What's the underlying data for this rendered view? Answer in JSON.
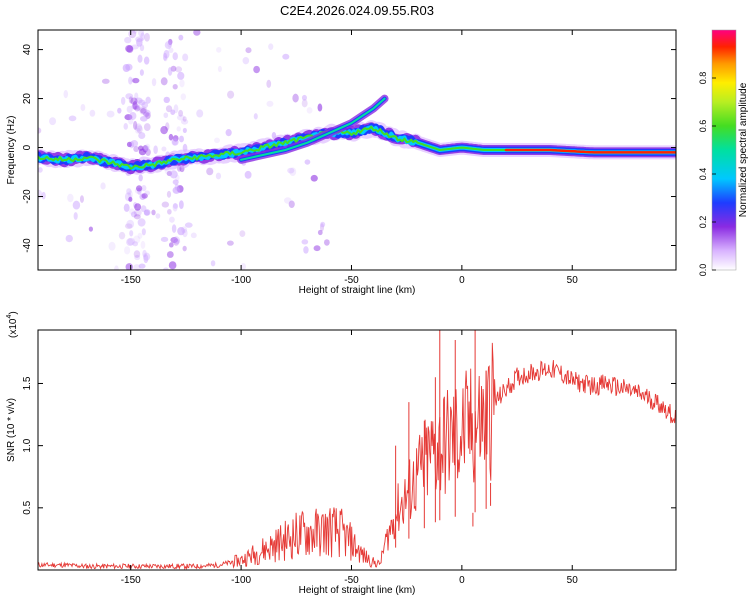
{
  "figure": {
    "title": "C2E4.2026.024.09.55.R03"
  },
  "chart_data": [
    {
      "type": "heatmap",
      "title": "C2E4.2026.024.09.55.R03",
      "xlabel": "Height of straight line (km)",
      "ylabel": "Frequency (Hz)",
      "xlim": [
        -192,
        97
      ],
      "ylim": [
        -50,
        48
      ],
      "x_ticks": [
        -150,
        -100,
        -50,
        0,
        50
      ],
      "y_ticks": [
        -40,
        -20,
        0,
        20,
        40
      ],
      "ridge": {
        "x": [
          -192,
          -180,
          -170,
          -160,
          -150,
          -140,
          -130,
          -120,
          -110,
          -100,
          -90,
          -80,
          -70,
          -60,
          -50,
          -40,
          -35,
          -30,
          -20,
          -10,
          0,
          10,
          20,
          40,
          60,
          80,
          97
        ],
        "y": [
          -4,
          -5,
          -4,
          -6,
          -8,
          -7,
          -5,
          -4,
          -3,
          -2,
          0,
          2,
          4,
          6,
          6,
          8,
          6,
          4,
          2,
          -1,
          0,
          -1,
          -1,
          -1,
          -2,
          -2,
          -2
        ]
      },
      "upper_branch": {
        "x": [
          -100,
          -90,
          -80,
          -70,
          -60,
          -50,
          -45,
          -40,
          -35
        ],
        "y": [
          -5,
          -3,
          -1,
          2,
          6,
          10,
          13,
          16,
          20
        ]
      },
      "colorbar": {
        "label": "Normalized spectral amplitude",
        "range": [
          0,
          1
        ],
        "ticks": [
          "0.0",
          "0.2",
          "0.4",
          "0.6",
          "0.8"
        ]
      }
    },
    {
      "type": "line",
      "xlabel": "Height of straight line (km)",
      "ylabel": "SNR (10 * v/v)",
      "y_multiplier": "(x10",
      "y_multiplier_exp": "4",
      "y_multiplier_close": ")",
      "xlim": [
        -192,
        97
      ],
      "ylim": [
        0,
        1.93
      ],
      "x_ticks": [
        -150,
        -100,
        -50,
        0,
        50
      ],
      "y_ticks": [
        0.5,
        1.0,
        1.5
      ],
      "color": "#e53935",
      "envelope": {
        "x": [
          -192,
          -180,
          -170,
          -160,
          -150,
          -140,
          -130,
          -120,
          -110,
          -100,
          -95,
          -90,
          -85,
          -80,
          -75,
          -70,
          -65,
          -60,
          -55,
          -50,
          -45,
          -40,
          -37,
          -35,
          -30,
          -25,
          -20,
          -15,
          -10,
          -5,
          0,
          5,
          10,
          15,
          20,
          25,
          30,
          35,
          40,
          45,
          50,
          55,
          60,
          65,
          70,
          75,
          80,
          85,
          90,
          97
        ],
        "y": [
          0.04,
          0.04,
          0.03,
          0.03,
          0.03,
          0.03,
          0.03,
          0.03,
          0.04,
          0.08,
          0.12,
          0.16,
          0.2,
          0.24,
          0.28,
          0.3,
          0.3,
          0.32,
          0.3,
          0.22,
          0.12,
          0.06,
          0.05,
          0.2,
          0.45,
          0.6,
          0.75,
          0.9,
          1.0,
          1.05,
          1.1,
          1.15,
          1.2,
          1.35,
          1.45,
          1.55,
          1.58,
          1.6,
          1.62,
          1.58,
          1.52,
          1.5,
          1.48,
          1.5,
          1.47,
          1.45,
          1.42,
          1.38,
          1.33,
          1.22
        ]
      },
      "spikes": [
        {
          "x": -30,
          "y": 1.0
        },
        {
          "x": -24,
          "y": 1.35
        },
        {
          "x": -17,
          "y": 1.2
        },
        {
          "x": -12,
          "y": 1.55
        },
        {
          "x": -10,
          "y": 1.93
        },
        {
          "x": -3,
          "y": 1.85
        },
        {
          "x": 6,
          "y": 1.93
        },
        {
          "x": 11,
          "y": 1.6
        },
        {
          "x": 5,
          "y": 0.35
        },
        {
          "x": 13,
          "y": 0.7
        }
      ]
    }
  ]
}
